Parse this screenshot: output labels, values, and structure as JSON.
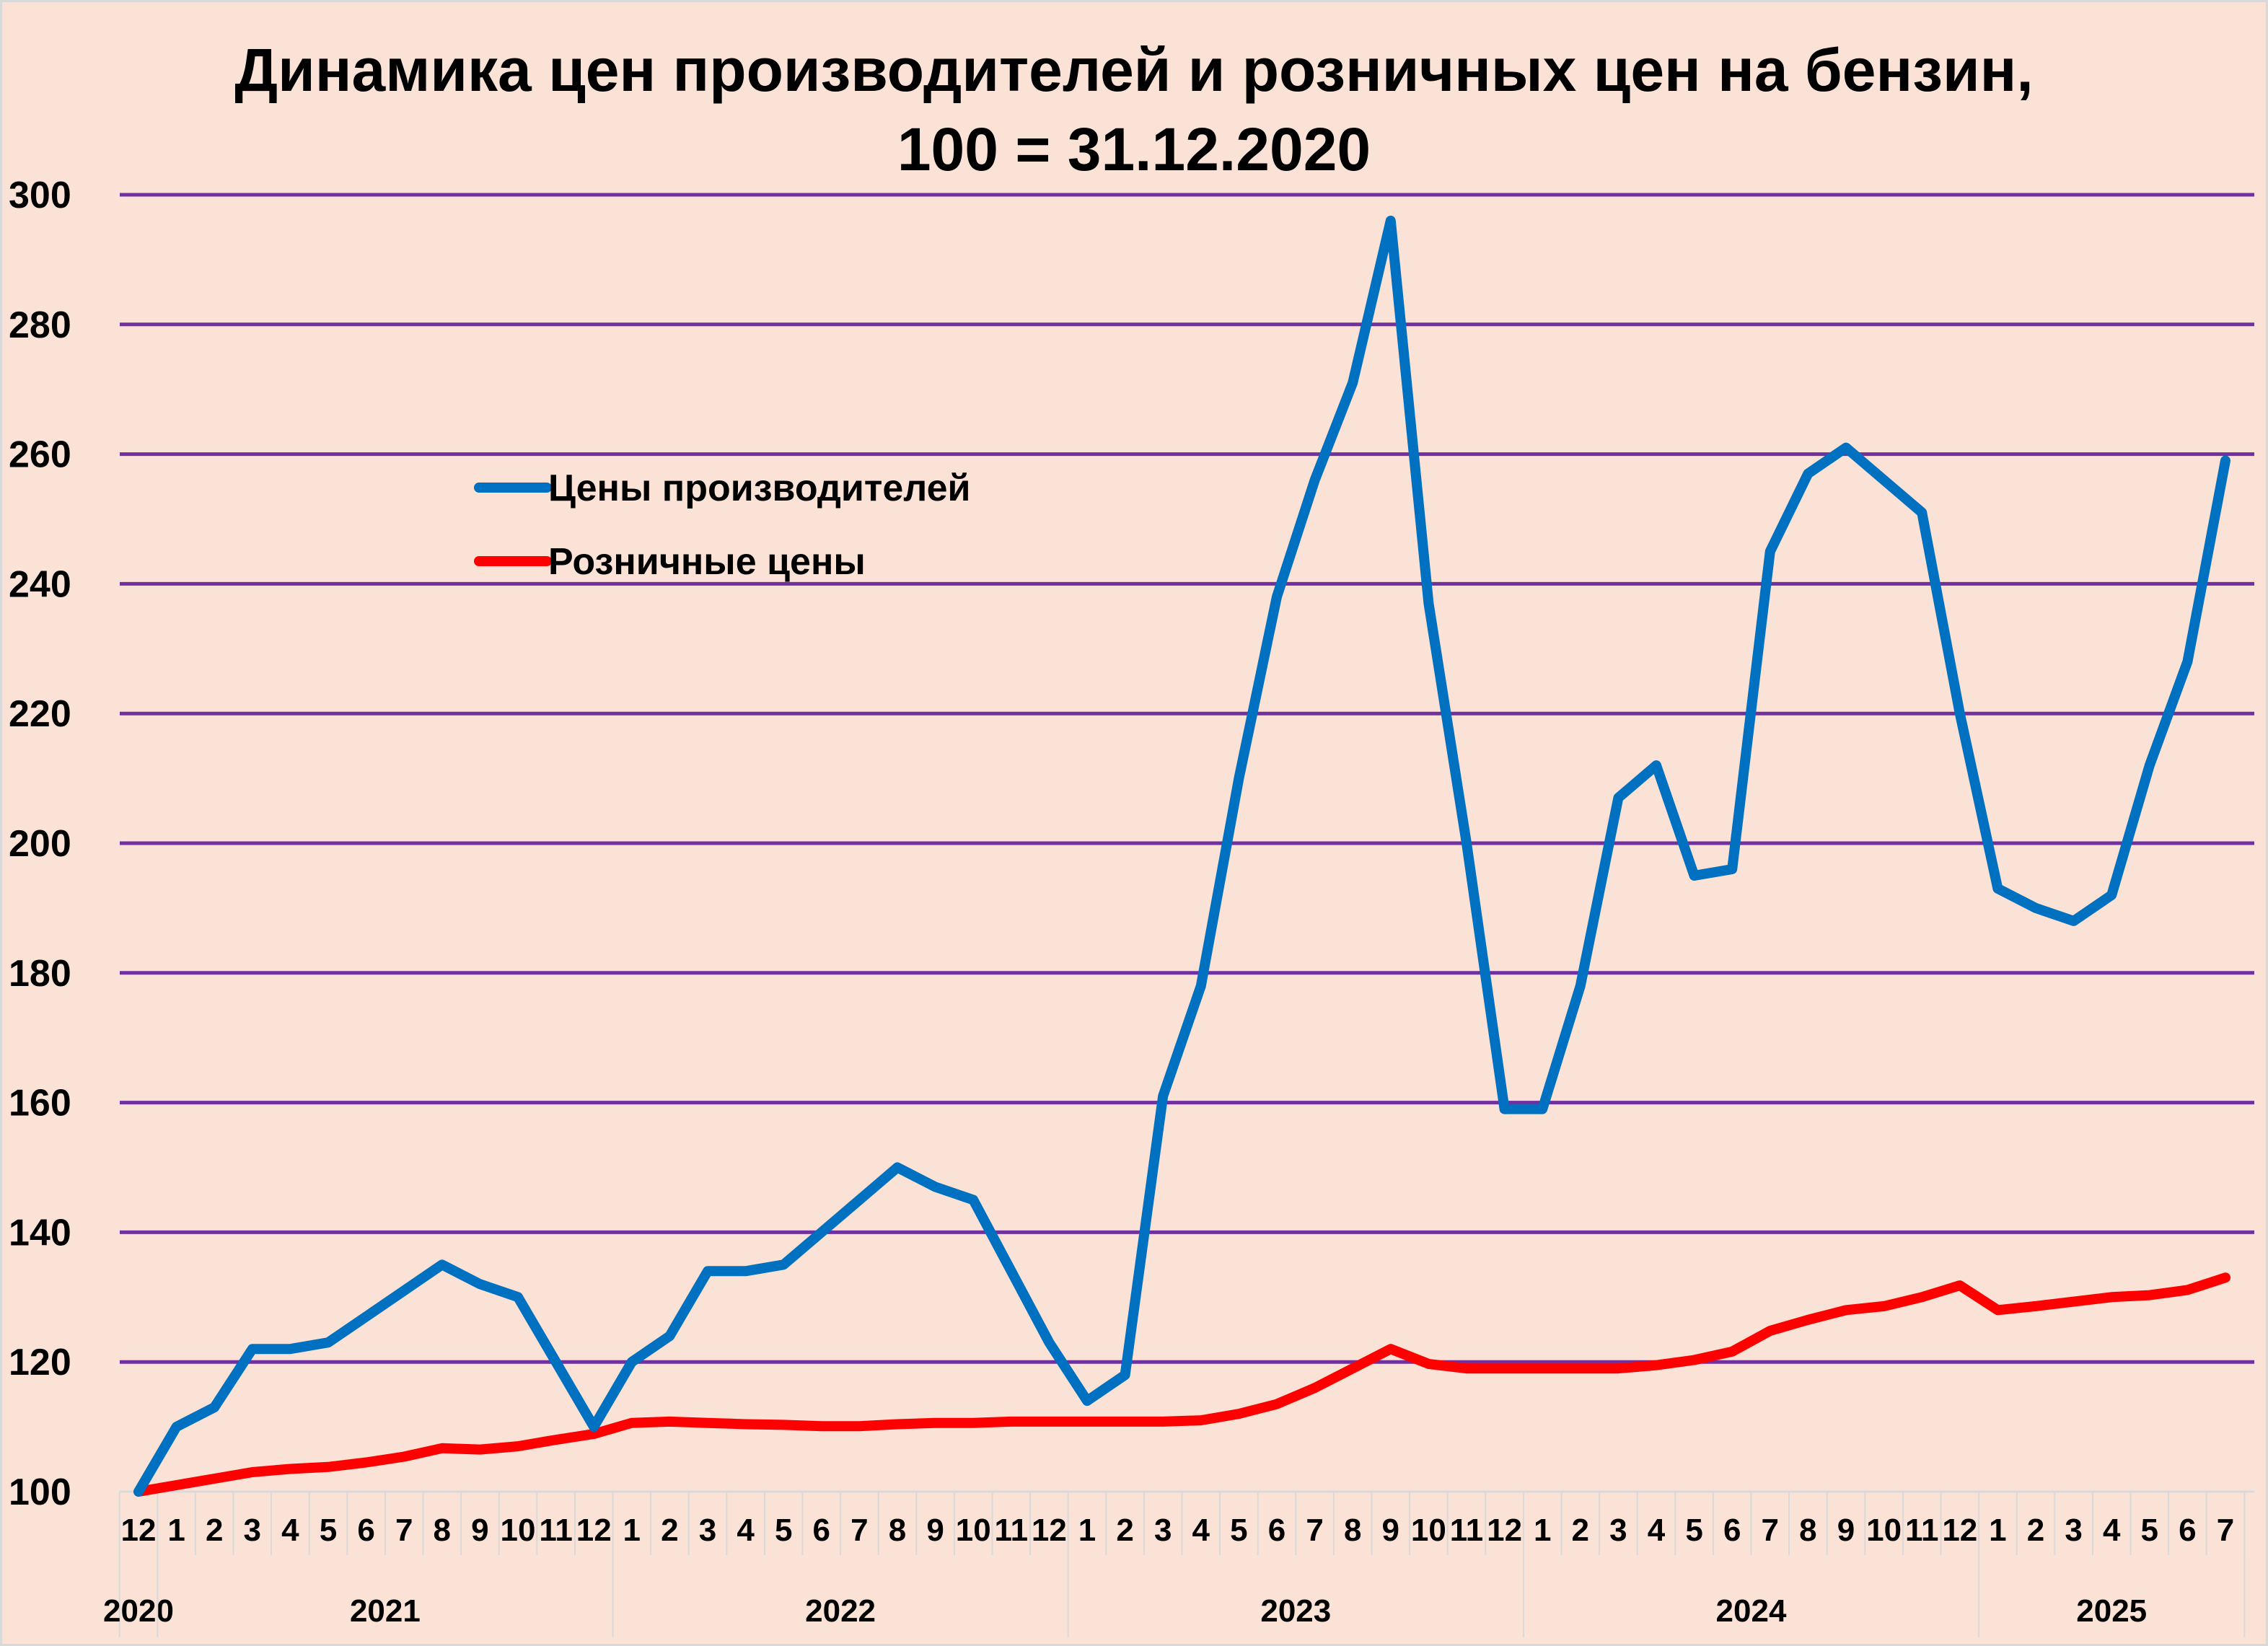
{
  "chart_data": {
    "type": "line",
    "title": [
      "Динамика цен производителей и розничных цен на бензин,",
      "100 = 31.12.2020"
    ],
    "ylim": [
      100,
      300
    ],
    "yticks": [
      100,
      120,
      140,
      160,
      180,
      200,
      220,
      240,
      260,
      280,
      300
    ],
    "grid": true,
    "legend_position": "upper-left",
    "month_labels": [
      "12",
      "1",
      "2",
      "3",
      "4",
      "5",
      "6",
      "7",
      "8",
      "9",
      "10",
      "11",
      "12",
      "1",
      "2",
      "3",
      "4",
      "5",
      "6",
      "7",
      "8",
      "9",
      "10",
      "11",
      "12",
      "1",
      "2",
      "3",
      "4",
      "5",
      "6",
      "7",
      "8",
      "9",
      "10",
      "11",
      "12",
      "1",
      "2",
      "3",
      "4",
      "5",
      "6",
      "7",
      "8",
      "9",
      "10",
      "11",
      "12",
      "1",
      "2",
      "3",
      "4",
      "5",
      "6",
      "7"
    ],
    "years": [
      {
        "label": "2020",
        "start": 0,
        "end": 0
      },
      {
        "label": "2021",
        "start": 1,
        "end": 12
      },
      {
        "label": "2022",
        "start": 13,
        "end": 24
      },
      {
        "label": "2023",
        "start": 25,
        "end": 36
      },
      {
        "label": "2024",
        "start": 37,
        "end": 48
      },
      {
        "label": "2025",
        "start": 49,
        "end": 55
      }
    ],
    "series": [
      {
        "name": "Цены производителей",
        "color": "#0070c0",
        "values": [
          100,
          110,
          113,
          122,
          122,
          123,
          127,
          131,
          135,
          132,
          130,
          120,
          110,
          120,
          124,
          134,
          134,
          135,
          140,
          145,
          150,
          147,
          145,
          134,
          123,
          114,
          118,
          161,
          178,
          210,
          238,
          256,
          271,
          296,
          237,
          200,
          159,
          159,
          178,
          207,
          212,
          195,
          196,
          245,
          257,
          261,
          256,
          251,
          220,
          193,
          190,
          188,
          192,
          212,
          228,
          259
        ]
      },
      {
        "name": "Розничные цены",
        "color": "#ff0000",
        "values": [
          100,
          101,
          102,
          103,
          103.5,
          103.8,
          104.5,
          105.4,
          106.7,
          106.5,
          107,
          108,
          108.9,
          110.6,
          110.8,
          110.6,
          110.4,
          110.3,
          110.1,
          110.1,
          110.4,
          110.6,
          110.6,
          110.8,
          110.8,
          110.8,
          110.8,
          110.8,
          111,
          112,
          113.5,
          116,
          119,
          122,
          119.7,
          119,
          119,
          119,
          119,
          119,
          119.5,
          120.3,
          121.6,
          124.8,
          126.5,
          128,
          128.6,
          130,
          131.8,
          128,
          128.6,
          129.3,
          130,
          130.3,
          131.1,
          133
        ]
      }
    ]
  }
}
